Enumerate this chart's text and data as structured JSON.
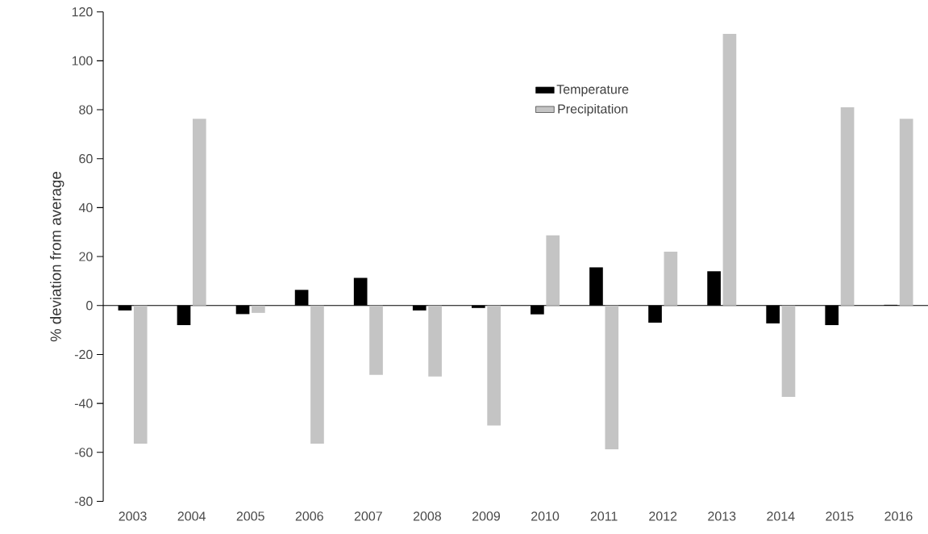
{
  "chart_data": {
    "type": "bar",
    "ylabel": "% deviation from average",
    "categories": [
      "2003",
      "2004",
      "2005",
      "2006",
      "2007",
      "2008",
      "2009",
      "2010",
      "2011",
      "2012",
      "2013",
      "2014",
      "2015",
      "2016"
    ],
    "series": [
      {
        "name": "Temperature",
        "color": "#000000",
        "values": [
          -2,
          -8,
          -3.5,
          6.4,
          11.3,
          -2,
          -1,
          -3.6,
          15.6,
          -7,
          14,
          -7.3,
          -8,
          0.3
        ]
      },
      {
        "name": "Precipitation",
        "color": "#c4c4c4",
        "values": [
          -56.4,
          76.3,
          -3,
          -56.4,
          -28.3,
          -29,
          -49,
          28.7,
          -58.7,
          22,
          111,
          -37.3,
          81,
          76.3
        ]
      }
    ],
    "ylim": [
      -80,
      120
    ],
    "yticks": [
      -80,
      -60,
      -40,
      -20,
      0,
      20,
      40,
      60,
      80,
      100,
      120
    ],
    "legend": "top"
  }
}
